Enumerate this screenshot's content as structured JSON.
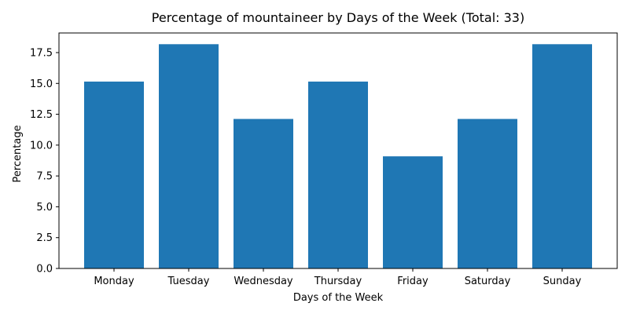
{
  "chart_data": {
    "type": "bar",
    "title": "Percentage of mountaineer by Days of the Week (Total: 33)",
    "xlabel": "Days of the Week",
    "ylabel": "Percentage",
    "categories": [
      "Monday",
      "Tuesday",
      "Wednesday",
      "Thursday",
      "Friday",
      "Saturday",
      "Sunday"
    ],
    "values": [
      15.15,
      18.18,
      12.12,
      15.15,
      9.09,
      12.12,
      18.18
    ],
    "ylim": [
      0,
      19.09
    ],
    "yticks": [
      0.0,
      2.5,
      5.0,
      7.5,
      10.0,
      12.5,
      15.0,
      17.5
    ],
    "ytick_labels": [
      "0.0",
      "2.5",
      "5.0",
      "7.5",
      "10.0",
      "12.5",
      "15.0",
      "17.5"
    ],
    "bar_color": "#1f77b4",
    "grid": false,
    "legend": "none"
  }
}
